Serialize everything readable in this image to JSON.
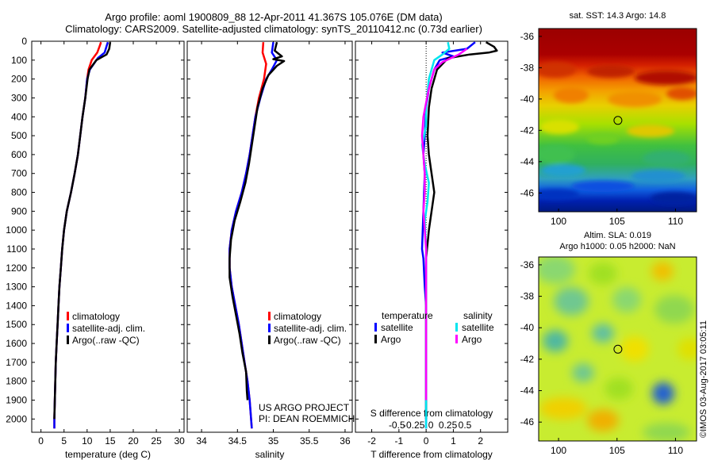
{
  "header": {
    "line1": "Argo profile: aoml 1900809_88 12-Apr-2011 41.367S 105.076E (DM data)",
    "line2": "Climatology: CARS2009. Satellite-adjusted climatology: synTS_20110412.nc (0.73d earlier)"
  },
  "credits": {
    "project": "US ARGO PROJECT",
    "pi": "PI: DEAN ROEMMICH",
    "imos": "©IMOS 03-Aug-2017 03:05:11"
  },
  "colors": {
    "climatology": "#ff0000",
    "satellite": "#0000ff",
    "argo": "#000000",
    "salinity_satellite": "#00e5ee",
    "salinity_argo": "#ff00ff"
  },
  "chart_data": [
    {
      "id": "temperature",
      "type": "line",
      "xlabel": "temperature (deg C)",
      "ylabel": "",
      "xlim": [
        -2,
        31
      ],
      "ylim": [
        0,
        2070
      ],
      "y_inverted": true,
      "xticks": [
        0,
        5,
        10,
        15,
        20,
        25,
        30
      ],
      "yticks": [
        0,
        100,
        200,
        300,
        400,
        500,
        600,
        700,
        800,
        900,
        1000,
        1100,
        1200,
        1300,
        1400,
        1500,
        1600,
        1700,
        1800,
        1900,
        2000
      ],
      "legend": {
        "placement": "lower-right",
        "entries": [
          "climatology",
          "satellite-adj. clim.",
          "Argo(..raw -QC)"
        ]
      },
      "series": [
        {
          "name": "climatology",
          "color": "#ff0000",
          "points": [
            [
              13.0,
              5
            ],
            [
              12.8,
              20
            ],
            [
              12.2,
              60
            ],
            [
              11.0,
              100
            ],
            [
              10.3,
              150
            ],
            [
              10.0,
              200
            ],
            [
              9.6,
              300
            ],
            [
              9.0,
              400
            ],
            [
              8.5,
              500
            ],
            [
              8.0,
              600
            ],
            [
              7.3,
              700
            ],
            [
              6.5,
              800
            ],
            [
              5.6,
              900
            ],
            [
              5.0,
              1000
            ],
            [
              4.6,
              1100
            ],
            [
              4.3,
              1200
            ],
            [
              4.0,
              1300
            ],
            [
              3.8,
              1400
            ],
            [
              3.6,
              1500
            ],
            [
              3.4,
              1600
            ],
            [
              3.2,
              1700
            ],
            [
              3.1,
              1800
            ],
            [
              3.0,
              1900
            ],
            [
              2.9,
              2000
            ],
            [
              2.9,
              2050
            ]
          ]
        },
        {
          "name": "satellite-adj. clim.",
          "color": "#0000ff",
          "points": [
            [
              14.5,
              5
            ],
            [
              14.3,
              20
            ],
            [
              13.8,
              60
            ],
            [
              12.3,
              90
            ],
            [
              10.6,
              150
            ],
            [
              10.0,
              200
            ],
            [
              9.6,
              300
            ],
            [
              9.0,
              400
            ],
            [
              8.5,
              500
            ],
            [
              8.0,
              600
            ],
            [
              7.3,
              700
            ],
            [
              6.5,
              800
            ],
            [
              5.6,
              900
            ],
            [
              5.0,
              1000
            ],
            [
              4.6,
              1100
            ],
            [
              4.3,
              1200
            ],
            [
              4.0,
              1300
            ],
            [
              3.8,
              1400
            ],
            [
              3.6,
              1500
            ],
            [
              3.4,
              1600
            ],
            [
              3.2,
              1700
            ],
            [
              3.1,
              1800
            ],
            [
              3.0,
              1900
            ],
            [
              2.9,
              2000
            ],
            [
              2.9,
              2050
            ]
          ]
        },
        {
          "name": "Argo(..raw -QC)",
          "color": "#000000",
          "points": [
            [
              15.0,
              5
            ],
            [
              14.8,
              40
            ],
            [
              14.2,
              70
            ],
            [
              12.0,
              100
            ],
            [
              10.5,
              150
            ],
            [
              10.1,
              200
            ],
            [
              9.6,
              300
            ],
            [
              9.0,
              400
            ],
            [
              8.5,
              500
            ],
            [
              8.0,
              600
            ],
            [
              7.3,
              700
            ],
            [
              6.5,
              800
            ],
            [
              5.6,
              900
            ],
            [
              5.0,
              1000
            ],
            [
              4.6,
              1100
            ],
            [
              4.3,
              1200
            ],
            [
              4.0,
              1300
            ],
            [
              3.8,
              1400
            ],
            [
              3.6,
              1500
            ],
            [
              3.4,
              1600
            ],
            [
              3.2,
              1700
            ],
            [
              3.1,
              1800
            ],
            [
              3.0,
              1900
            ],
            [
              2.9,
              2000
            ]
          ]
        }
      ]
    },
    {
      "id": "salinity",
      "type": "line",
      "xlabel": "salinity",
      "ylabel": "",
      "xlim": [
        33.8,
        36.1
      ],
      "ylim": [
        0,
        2070
      ],
      "y_inverted": true,
      "xticks": [
        34,
        34.5,
        35,
        35.5,
        36
      ],
      "legend": {
        "placement": "lower-right",
        "entries": [
          "climatology",
          "satellite-adj. clim.",
          "Argo(..raw -QC)"
        ]
      },
      "series": [
        {
          "name": "climatology",
          "color": "#ff0000",
          "points": [
            [
              34.86,
              5
            ],
            [
              34.85,
              60
            ],
            [
              34.9,
              120
            ],
            [
              34.87,
              200
            ],
            [
              34.8,
              300
            ],
            [
              34.75,
              400
            ],
            [
              34.71,
              500
            ],
            [
              34.67,
              600
            ],
            [
              34.62,
              700
            ],
            [
              34.56,
              800
            ],
            [
              34.48,
              900
            ],
            [
              34.42,
              1000
            ],
            [
              34.39,
              1100
            ],
            [
              34.39,
              1200
            ],
            [
              34.42,
              1300
            ],
            [
              34.47,
              1400
            ],
            [
              34.52,
              1500
            ],
            [
              34.56,
              1600
            ],
            [
              34.6,
              1700
            ],
            [
              34.64,
              1800
            ],
            [
              34.67,
              1900
            ],
            [
              34.69,
              2000
            ],
            [
              34.7,
              2050
            ]
          ]
        },
        {
          "name": "satellite-adj. clim.",
          "color": "#0000ff",
          "points": [
            [
              35.0,
              5
            ],
            [
              34.98,
              60
            ],
            [
              35.05,
              100
            ],
            [
              34.98,
              150
            ],
            [
              34.9,
              200
            ],
            [
              34.82,
              300
            ],
            [
              34.75,
              400
            ],
            [
              34.71,
              500
            ],
            [
              34.67,
              600
            ],
            [
              34.62,
              700
            ],
            [
              34.56,
              800
            ],
            [
              34.48,
              900
            ],
            [
              34.42,
              1000
            ],
            [
              34.39,
              1100
            ],
            [
              34.39,
              1200
            ],
            [
              34.42,
              1300
            ],
            [
              34.47,
              1400
            ],
            [
              34.52,
              1500
            ],
            [
              34.56,
              1600
            ],
            [
              34.6,
              1700
            ],
            [
              34.64,
              1800
            ],
            [
              34.67,
              1900
            ],
            [
              34.69,
              2000
            ],
            [
              34.7,
              2050
            ]
          ]
        },
        {
          "name": "Argo(..raw -QC)",
          "color": "#000000",
          "points": [
            [
              35.05,
              5
            ],
            [
              35.02,
              50
            ],
            [
              35.12,
              80
            ],
            [
              35.0,
              95
            ],
            [
              35.15,
              105
            ],
            [
              35.05,
              130
            ],
            [
              34.93,
              180
            ],
            [
              34.85,
              250
            ],
            [
              34.78,
              350
            ],
            [
              34.74,
              450
            ],
            [
              34.7,
              550
            ],
            [
              34.66,
              650
            ],
            [
              34.61,
              750
            ],
            [
              34.54,
              850
            ],
            [
              34.46,
              950
            ],
            [
              34.41,
              1050
            ],
            [
              34.39,
              1150
            ],
            [
              34.39,
              1250
            ],
            [
              34.43,
              1350
            ],
            [
              34.48,
              1450
            ],
            [
              34.53,
              1550
            ],
            [
              34.57,
              1650
            ],
            [
              34.62,
              1750
            ],
            [
              34.63,
              1850
            ],
            [
              34.64,
              1900
            ]
          ]
        }
      ]
    },
    {
      "id": "differences",
      "type": "line",
      "xlabel": "T difference from climatology",
      "x2label": "S difference from climatology",
      "ylabel": "",
      "xlim": [
        -2.6,
        3.0
      ],
      "ylim": [
        0,
        2070
      ],
      "y_inverted": true,
      "xticks": [
        -2,
        -1,
        0,
        1,
        2
      ],
      "x2ticks": [
        "-0.5",
        "-0.25",
        "0",
        "0.25",
        "0.5"
      ],
      "legend": {
        "placement": "lower",
        "groups": [
          "temperature",
          "salinity"
        ],
        "entries": [
          "satellite",
          "Argo",
          "satellite",
          "Argo"
        ]
      },
      "series": [
        {
          "name": "satellite",
          "group": "temperature",
          "color": "#0000ff",
          "points": [
            [
              1.8,
              5
            ],
            [
              1.5,
              40
            ],
            [
              0.6,
              60
            ],
            [
              1.0,
              80
            ],
            [
              0.5,
              100
            ],
            [
              0.3,
              150
            ],
            [
              0.1,
              250
            ],
            [
              0.0,
              350
            ],
            [
              -0.05,
              500
            ],
            [
              -0.1,
              600
            ],
            [
              -0.05,
              700
            ],
            [
              -0.1,
              900
            ],
            [
              -0.15,
              1100
            ],
            [
              -0.1,
              1150
            ],
            [
              -0.05,
              1300
            ],
            [
              0.0,
              1400
            ],
            [
              0.0,
              1600
            ],
            [
              0.0,
              1800
            ],
            [
              0.0,
              2000
            ],
            [
              0.0,
              2050
            ]
          ]
        },
        {
          "name": "Argo",
          "group": "temperature",
          "color": "#000000",
          "points": [
            [
              2.2,
              5
            ],
            [
              2.5,
              30
            ],
            [
              2.6,
              50
            ],
            [
              2.3,
              60
            ],
            [
              1.6,
              70
            ],
            [
              0.8,
              90
            ],
            [
              0.4,
              150
            ],
            [
              0.2,
              250
            ],
            [
              0.1,
              350
            ],
            [
              0.05,
              500
            ],
            [
              0.1,
              600
            ],
            [
              0.2,
              700
            ],
            [
              0.3,
              800
            ],
            [
              0.2,
              900
            ],
            [
              0.1,
              1000
            ],
            [
              0.0,
              1150
            ],
            [
              0.0,
              1300
            ],
            [
              0.0,
              1500
            ],
            [
              0.0,
              1700
            ],
            [
              0.0,
              1900
            ],
            [
              0.0,
              2000
            ]
          ]
        },
        {
          "name": "satellite",
          "group": "salinity",
          "color": "#00e5ee",
          "points": [
            [
              0.8,
              5
            ],
            [
              0.85,
              40
            ],
            [
              0.6,
              70
            ],
            [
              0.3,
              100
            ],
            [
              0.1,
              200
            ],
            [
              0.0,
              350
            ],
            [
              0.0,
              450
            ],
            [
              -0.15,
              550
            ],
            [
              -0.05,
              650
            ],
            [
              0.1,
              750
            ],
            [
              0.05,
              850
            ],
            [
              -0.05,
              950
            ],
            [
              0.0,
              1100
            ],
            [
              0.0,
              1300
            ],
            [
              0.0,
              1500
            ],
            [
              0.0,
              1700
            ],
            [
              0.0,
              1900
            ],
            [
              0.0,
              2050
            ]
          ]
        },
        {
          "name": "Argo",
          "group": "salinity",
          "color": "#ff00ff",
          "points": [
            [
              1.5,
              40
            ],
            [
              1.2,
              70
            ],
            [
              0.6,
              110
            ],
            [
              0.3,
              150
            ],
            [
              0.1,
              250
            ],
            [
              -0.1,
              400
            ],
            [
              -0.15,
              500
            ],
            [
              -0.1,
              600
            ],
            [
              -0.05,
              700
            ],
            [
              -0.05,
              800
            ],
            [
              -0.1,
              900
            ],
            [
              -0.05,
              1000
            ],
            [
              0.0,
              1100
            ],
            [
              0.0,
              1300
            ],
            [
              0.0,
              1500
            ],
            [
              0.0,
              1700
            ],
            [
              0.0,
              1900
            ]
          ]
        }
      ]
    },
    {
      "id": "sst-map",
      "type": "heatmap",
      "title": "sat. SST: 14.3  Argo: 14.8",
      "xticks": [
        100,
        105,
        110
      ],
      "yticks": [
        -36,
        -38,
        -40,
        -42,
        -44,
        -46
      ],
      "xlim": [
        98.3,
        111.8
      ],
      "ylim": [
        -47.2,
        -35.5
      ],
      "marker": {
        "lon": 105.076,
        "lat": -41.367
      }
    },
    {
      "id": "sla-map",
      "type": "heatmap",
      "title": "Altim. SLA: 0.019",
      "subtitle": "Argo h1000: 0.05  h2000: NaN",
      "xticks": [
        100,
        105,
        110
      ],
      "yticks": [
        -36,
        -38,
        -40,
        -42,
        -44,
        -46
      ],
      "xlim": [
        98.3,
        111.8
      ],
      "ylim": [
        -47.2,
        -35.5
      ],
      "marker": {
        "lon": 105.076,
        "lat": -41.367
      }
    }
  ]
}
